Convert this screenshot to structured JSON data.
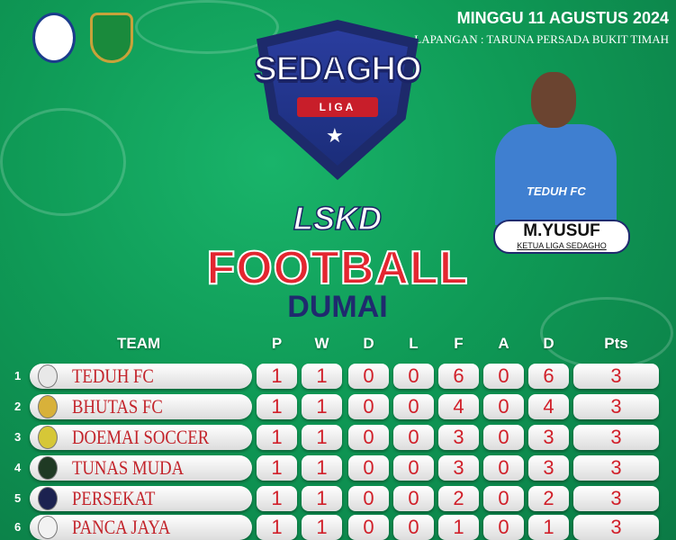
{
  "header": {
    "date": "MINGGU 11 AGUSTUS 2024",
    "venue": "LAPANGAN : TARUNA PERSADA BUKIT TIMAH"
  },
  "logo": {
    "name": "SEDAGHO",
    "sub": "LIGA"
  },
  "title": {
    "line1": "LSKD",
    "line2": "FOOTBALL",
    "line3": "DUMAI"
  },
  "featured": {
    "name": "M.YUSUF",
    "role": "KETUA LIGA SEDAGHO",
    "jersey_text": "TEDUH FC"
  },
  "colors": {
    "accent_red": "#d1202a",
    "navy": "#1f2a6e",
    "bg_green": "#0f9a56"
  },
  "table": {
    "columns": [
      "TEAM",
      "P",
      "W",
      "D",
      "L",
      "F",
      "A",
      "D",
      "Pts"
    ],
    "rows": [
      {
        "rank": "1",
        "team": "TEDUH FC",
        "logo": "#e8e8e8",
        "stats": [
          "1",
          "1",
          "0",
          "0",
          "6",
          "0",
          "6",
          "3"
        ]
      },
      {
        "rank": "2",
        "team": "BHUTAS FC",
        "logo": "#d8b13a",
        "stats": [
          "1",
          "1",
          "0",
          "0",
          "4",
          "0",
          "4",
          "3"
        ]
      },
      {
        "rank": "3",
        "team": "DOEMAI SOCCER",
        "logo": "#d6c737",
        "stats": [
          "1",
          "1",
          "0",
          "0",
          "3",
          "0",
          "3",
          "3"
        ]
      },
      {
        "rank": "4",
        "team": "TUNAS MUDA",
        "logo": "#1f3a24",
        "stats": [
          "1",
          "1",
          "0",
          "0",
          "3",
          "0",
          "3",
          "3"
        ]
      },
      {
        "rank": "5",
        "team": "PERSEKAT",
        "logo": "#1c2250",
        "stats": [
          "1",
          "1",
          "0",
          "0",
          "2",
          "0",
          "2",
          "3"
        ]
      },
      {
        "rank": "6",
        "team": "PANCA JAYA",
        "logo": "#f2f2f2",
        "stats": [
          "1",
          "1",
          "0",
          "0",
          "1",
          "0",
          "1",
          "3"
        ]
      }
    ]
  }
}
